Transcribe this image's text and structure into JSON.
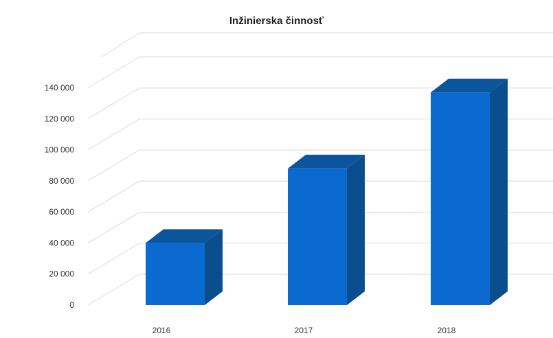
{
  "chart_data": {
    "type": "bar",
    "title": "Inžinierska činnosť",
    "xlabel": "",
    "ylabel": "",
    "categories": [
      "2016",
      "2017",
      "2018"
    ],
    "values": [
      40000,
      88000,
      137000
    ],
    "ylim": [
      0,
      140000
    ],
    "yticks": [
      0,
      20000,
      40000,
      60000,
      80000,
      100000,
      120000,
      140000
    ],
    "ytick_labels": [
      "0",
      "20 000",
      "40 000",
      "60 000",
      "80 000",
      "100 000",
      "120 000",
      "140 000"
    ],
    "grid": true,
    "legend": "none",
    "style": "3d-column",
    "colors": {
      "front": "#0a6ad0",
      "side": "#0a4e8e",
      "top": "#0a559c",
      "grid": "#d9d9d9"
    }
  }
}
